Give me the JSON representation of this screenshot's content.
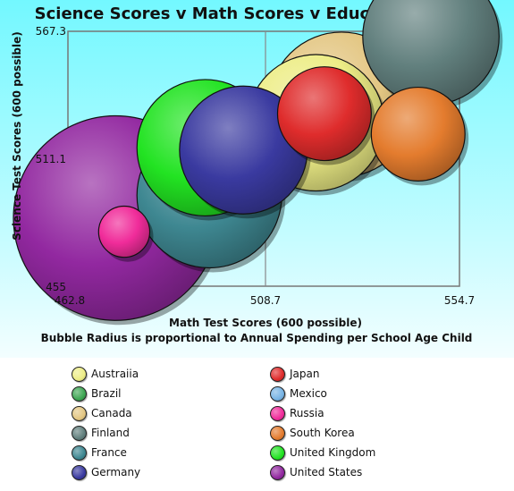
{
  "chart_data": {
    "type": "bubble",
    "title": "Science Scores v Math Scores v Education Spend",
    "xlabel": "Math Test Scores (600 possible)",
    "xlabel2": "Bubble Radius is proportional to Annual Spending per School Age Child",
    "ylabel": "Science Test Scores (600 possible)",
    "xlim": [
      462.8,
      554.7
    ],
    "ylim": [
      455,
      567.3
    ],
    "x_ticks": [
      "462.8",
      "508.7",
      "554.7"
    ],
    "y_ticks": [
      "455",
      "511.1",
      "567.3"
    ],
    "grid": true,
    "legend_position": "bottom",
    "series": [
      {
        "name": "Austraiia",
        "color": "#eded86",
        "x": 521,
        "y": 527,
        "r": 16
      },
      {
        "name": "Brazil",
        "color": "#3ea653",
        "x": null,
        "y": null,
        "r": null
      },
      {
        "name": "Canada",
        "color": "#e3c682",
        "x": 527,
        "y": 535,
        "r": 17
      },
      {
        "name": "Finland",
        "color": "#617f7d",
        "x": 548,
        "y": 565,
        "r": 16
      },
      {
        "name": "France",
        "color": "#3e8791",
        "x": 496,
        "y": 495,
        "r": 17
      },
      {
        "name": "Germany",
        "color": "#3a3aa0",
        "x": 504,
        "y": 515,
        "r": 15
      },
      {
        "name": "Japan",
        "color": "#df2c2c",
        "x": 523,
        "y": 531,
        "r": 11
      },
      {
        "name": "Mexico",
        "color": "#78b4e5",
        "x": null,
        "y": null,
        "r": null
      },
      {
        "name": "Russia",
        "color": "#f02c9a",
        "x": 476,
        "y": 479,
        "r": 6
      },
      {
        "name": "South Korea",
        "color": "#e47c2e",
        "x": 545,
        "y": 522,
        "r": 11
      },
      {
        "name": "United Kingdom",
        "color": "#22e322",
        "x": 495,
        "y": 516,
        "r": 16
      },
      {
        "name": "United States",
        "color": "#9228a0",
        "x": 474,
        "y": 485,
        "r": 24
      }
    ]
  }
}
